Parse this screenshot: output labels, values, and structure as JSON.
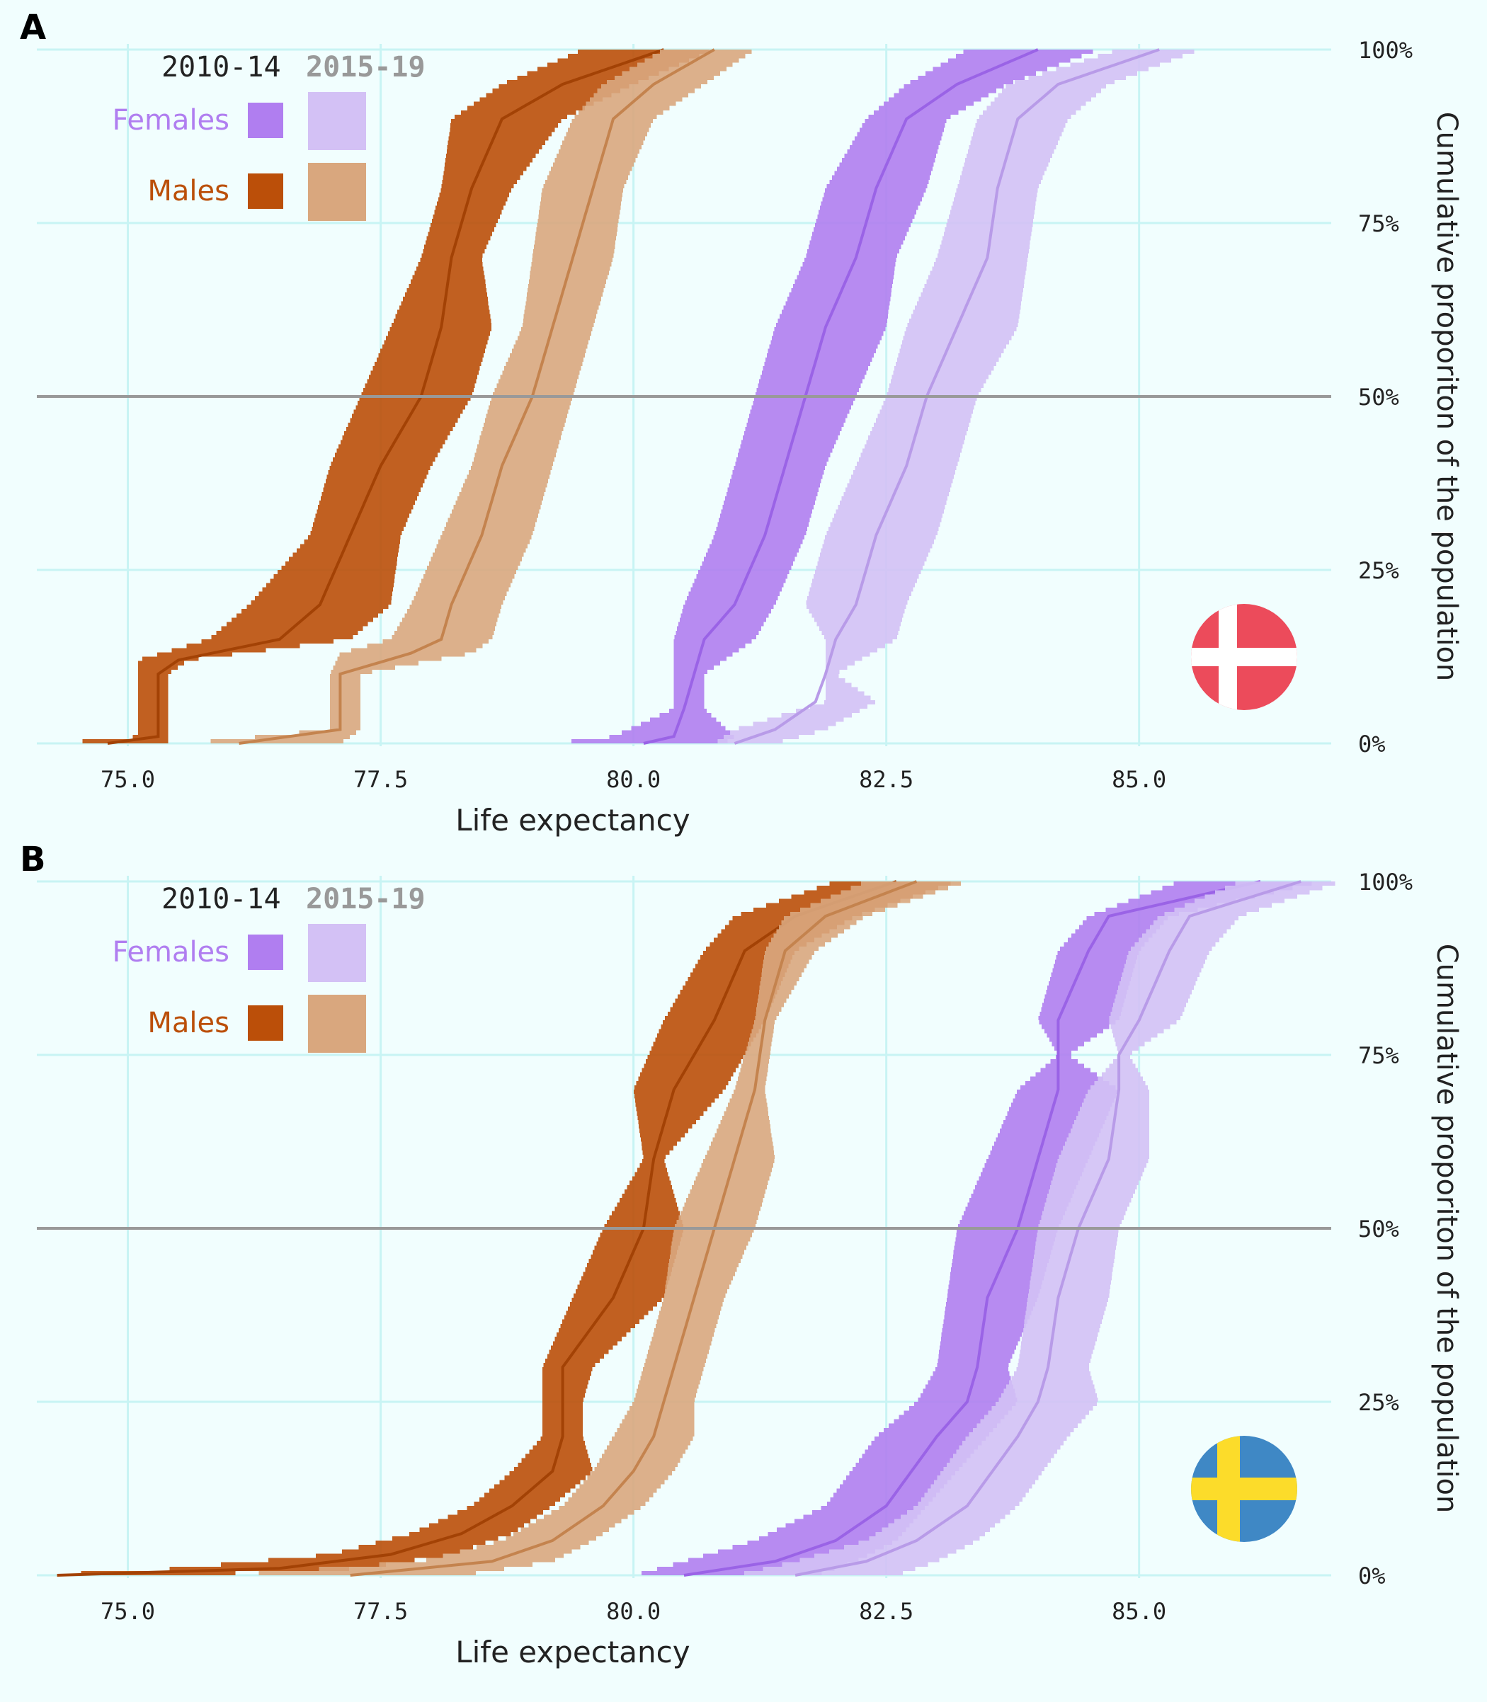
{
  "colors": {
    "background": "#f1fefe",
    "grid": "#c8f4f4",
    "median_line": "#999999",
    "females_2010": "#b07ef0",
    "females_2015": "#d3c1f5",
    "males_2010": "#bb4f09",
    "males_2015": "#d9a77e",
    "text_dark": "#222222",
    "text_grey": "#999999"
  },
  "chart_data": [
    {
      "type": "area",
      "panel_label": "A",
      "flag": "denmark-flag-icon",
      "xlabel": "Life expectancy",
      "ylabel": "Cumulative proporiton of the population",
      "x_ticks": [
        "75.0",
        "77.5",
        "80.0",
        "82.5",
        "85.0"
      ],
      "y_ticks": [
        "0%",
        "25%",
        "50%",
        "75%",
        "100%"
      ],
      "xlim": [
        74.1,
        86.9
      ],
      "ylim": [
        0,
        100
      ],
      "median_line": 50,
      "legend": {
        "periods": [
          "2010-14",
          "2015-19"
        ],
        "sexes": [
          "Females",
          "Males"
        ]
      },
      "series": [
        {
          "name": "Females",
          "period": "2010-14",
          "p": [
            0,
            1,
            5,
            10,
            15,
            20,
            30,
            40,
            50,
            60,
            70,
            80,
            90,
            95,
            100
          ],
          "x": [
            80.1,
            80.4,
            80.5,
            80.6,
            80.7,
            81.0,
            81.3,
            81.5,
            81.7,
            81.9,
            82.2,
            82.4,
            82.7,
            83.2,
            84.0
          ],
          "lo": [
            79.2,
            79.8,
            80.4,
            80.4,
            80.4,
            80.5,
            80.8,
            81.0,
            81.2,
            81.4,
            81.7,
            81.9,
            82.3,
            82.7,
            83.3
          ],
          "hi": [
            80.9,
            81.0,
            80.7,
            80.7,
            81.2,
            81.4,
            81.7,
            81.9,
            82.2,
            82.5,
            82.6,
            82.9,
            83.1,
            83.7,
            84.6
          ]
        },
        {
          "name": "Females",
          "period": "2015-19",
          "p": [
            0,
            2,
            6,
            10,
            15,
            20,
            30,
            40,
            50,
            60,
            70,
            80,
            90,
            95,
            100
          ],
          "x": [
            81.0,
            81.4,
            81.8,
            81.9,
            82.0,
            82.2,
            82.4,
            82.7,
            82.9,
            83.2,
            83.5,
            83.6,
            83.8,
            84.2,
            85.2
          ],
          "lo": [
            80.8,
            81.0,
            81.9,
            81.9,
            81.9,
            81.7,
            81.9,
            82.2,
            82.5,
            82.7,
            83.0,
            83.2,
            83.4,
            83.7,
            84.8
          ],
          "hi": [
            81.4,
            81.9,
            82.4,
            82.0,
            82.6,
            82.7,
            83.0,
            83.2,
            83.4,
            83.8,
            83.9,
            84.0,
            84.3,
            84.7,
            85.6
          ]
        },
        {
          "name": "Males",
          "period": "2010-14",
          "p": [
            0,
            1,
            5,
            10,
            12,
            15,
            20,
            30,
            40,
            50,
            60,
            70,
            80,
            90,
            95,
            100
          ],
          "x": [
            74.8,
            75.3,
            75.3,
            75.3,
            75.5,
            76.5,
            76.9,
            77.2,
            77.5,
            77.9,
            78.1,
            78.2,
            78.4,
            78.7,
            79.3,
            80.3
          ],
          "lo": [
            74.3,
            75.1,
            75.1,
            75.1,
            75.1,
            75.8,
            76.2,
            76.8,
            77.0,
            77.3,
            77.6,
            77.9,
            78.1,
            78.2,
            78.7,
            79.5
          ],
          "hi": [
            75.4,
            75.4,
            75.4,
            75.4,
            75.6,
            77.2,
            77.6,
            77.7,
            78.0,
            78.4,
            78.6,
            78.5,
            78.8,
            79.3,
            80.0,
            80.8
          ]
        },
        {
          "name": "Males",
          "period": "2015-19",
          "p": [
            0,
            2,
            5,
            10,
            13,
            15,
            20,
            30,
            40,
            50,
            60,
            70,
            80,
            90,
            95,
            100
          ],
          "x": [
            76.1,
            77.1,
            77.1,
            77.1,
            77.8,
            78.1,
            78.2,
            78.5,
            78.7,
            79.0,
            79.2,
            79.4,
            79.6,
            79.8,
            80.2,
            80.8
          ],
          "lo": [
            75.6,
            77.0,
            77.0,
            77.0,
            77.1,
            77.6,
            77.8,
            78.1,
            78.4,
            78.6,
            78.9,
            79.0,
            79.1,
            79.4,
            79.7,
            80.3
          ],
          "hi": [
            77.1,
            77.3,
            77.3,
            77.3,
            78.4,
            78.6,
            78.7,
            79.0,
            79.2,
            79.4,
            79.6,
            79.8,
            79.9,
            80.2,
            80.7,
            81.2
          ]
        }
      ]
    },
    {
      "type": "area",
      "panel_label": "B",
      "flag": "sweden-flag-icon",
      "xlabel": "Life expectancy",
      "ylabel": "Cumulative proporiton of the population",
      "x_ticks": [
        "75.0",
        "77.5",
        "80.0",
        "82.5",
        "85.0"
      ],
      "y_ticks": [
        "0%",
        "25%",
        "50%",
        "75%",
        "100%"
      ],
      "xlim": [
        74.1,
        86.9
      ],
      "ylim": [
        0,
        100
      ],
      "median_line": 50,
      "legend": {
        "periods": [
          "2010-14",
          "2015-19"
        ],
        "sexes": [
          "Females",
          "Males"
        ]
      },
      "series": [
        {
          "name": "Females",
          "period": "2010-14",
          "p": [
            0,
            2,
            5,
            10,
            20,
            25,
            30,
            40,
            50,
            60,
            70,
            75,
            80,
            90,
            95,
            100
          ],
          "x": [
            80.5,
            81.4,
            82.0,
            82.5,
            83.0,
            83.3,
            83.4,
            83.5,
            83.8,
            84.0,
            84.2,
            84.2,
            84.2,
            84.5,
            84.7,
            86.2
          ],
          "lo": [
            80.0,
            80.5,
            81.2,
            81.9,
            82.4,
            82.8,
            83.0,
            83.1,
            83.2,
            83.5,
            83.8,
            84.2,
            84.0,
            84.2,
            84.5,
            85.4
          ],
          "hi": [
            81.8,
            82.2,
            82.6,
            82.9,
            83.5,
            83.8,
            83.7,
            84.0,
            84.2,
            84.5,
            84.8,
            84.3,
            84.8,
            85.0,
            85.3,
            86.8
          ]
        },
        {
          "name": "Females",
          "period": "2015-19",
          "p": [
            0,
            2,
            5,
            10,
            20,
            25,
            30,
            40,
            50,
            60,
            70,
            75,
            80,
            90,
            95,
            100
          ],
          "x": [
            81.6,
            82.3,
            82.8,
            83.3,
            83.8,
            84.0,
            84.1,
            84.2,
            84.4,
            84.7,
            84.8,
            84.8,
            85.0,
            85.3,
            85.5,
            86.6
          ],
          "lo": [
            81.0,
            81.6,
            82.3,
            82.8,
            83.3,
            83.6,
            83.8,
            83.9,
            84.0,
            84.2,
            84.5,
            84.8,
            84.7,
            84.9,
            85.2,
            86.0
          ],
          "hi": [
            82.6,
            83.0,
            83.4,
            83.8,
            84.3,
            84.6,
            84.5,
            84.7,
            84.8,
            85.1,
            85.1,
            84.9,
            85.4,
            85.7,
            86.0,
            87.0
          ]
        },
        {
          "name": "Males",
          "period": "2010-14",
          "p": [
            0,
            1,
            3,
            6,
            10,
            15,
            20,
            25,
            30,
            40,
            50,
            60,
            70,
            80,
            90,
            95,
            100
          ],
          "x": [
            74.3,
            76.5,
            77.6,
            78.3,
            78.8,
            79.2,
            79.3,
            79.3,
            79.3,
            79.8,
            80.1,
            80.2,
            80.4,
            80.8,
            81.1,
            81.6,
            82.6
          ],
          "lo": [
            74.1,
            75.5,
            77.0,
            77.8,
            78.4,
            78.8,
            79.1,
            79.1,
            79.1,
            79.4,
            79.7,
            80.1,
            80.0,
            80.3,
            80.7,
            81.0,
            82.0
          ],
          "hi": [
            75.5,
            77.3,
            78.2,
            78.8,
            79.2,
            79.6,
            79.5,
            79.5,
            79.6,
            80.3,
            80.5,
            80.3,
            80.9,
            81.3,
            81.6,
            82.2,
            83.2
          ]
        },
        {
          "name": "Males",
          "period": "2015-19",
          "p": [
            0,
            2,
            5,
            10,
            15,
            20,
            25,
            30,
            40,
            50,
            60,
            70,
            80,
            90,
            95,
            100
          ],
          "x": [
            77.2,
            78.6,
            79.2,
            79.7,
            80.0,
            80.2,
            80.3,
            80.4,
            80.6,
            80.8,
            81.0,
            81.2,
            81.3,
            81.5,
            81.9,
            82.8
          ],
          "lo": [
            76.0,
            77.9,
            78.7,
            79.3,
            79.6,
            79.8,
            80.0,
            80.1,
            80.3,
            80.4,
            80.7,
            81.0,
            81.2,
            81.3,
            81.5,
            82.3
          ],
          "hi": [
            78.3,
            79.2,
            79.6,
            80.1,
            80.4,
            80.6,
            80.6,
            80.7,
            80.9,
            81.2,
            81.4,
            81.3,
            81.4,
            81.8,
            82.3,
            83.3
          ]
        }
      ]
    }
  ]
}
